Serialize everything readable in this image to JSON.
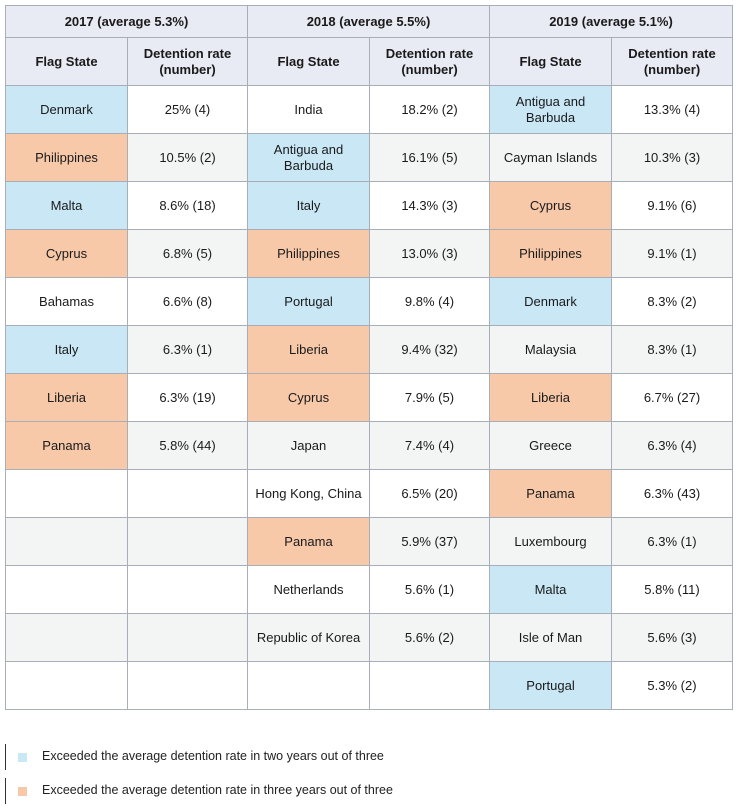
{
  "years": [
    {
      "header": "2017 (average 5.3%)",
      "col_flag": "Flag State",
      "col_rate": "Detention rate (number)",
      "rows": [
        {
          "flag": "Denmark",
          "rate": "25% (4)",
          "status": "two"
        },
        {
          "flag": "Philippines",
          "rate": "10.5% (2)",
          "status": "three"
        },
        {
          "flag": "Malta",
          "rate": "8.6% (18)",
          "status": "two"
        },
        {
          "flag": "Cyprus",
          "rate": "6.8% (5)",
          "status": "three"
        },
        {
          "flag": "Bahamas",
          "rate": "6.6% (8)",
          "status": "none"
        },
        {
          "flag": "Italy",
          "rate": "6.3% (1)",
          "status": "two"
        },
        {
          "flag": "Liberia",
          "rate": "6.3% (19)",
          "status": "three"
        },
        {
          "flag": "Panama",
          "rate": "5.8% (44)",
          "status": "three"
        },
        {
          "flag": "",
          "rate": "",
          "status": "none"
        },
        {
          "flag": "",
          "rate": "",
          "status": "none"
        },
        {
          "flag": "",
          "rate": "",
          "status": "none"
        },
        {
          "flag": "",
          "rate": "",
          "status": "none"
        },
        {
          "flag": "",
          "rate": "",
          "status": "none"
        }
      ]
    },
    {
      "header": "2018 (average 5.5%)",
      "col_flag": "Flag State",
      "col_rate": "Detention rate (number)",
      "rows": [
        {
          "flag": "India",
          "rate": "18.2% (2)",
          "status": "none"
        },
        {
          "flag": "Antigua and Barbuda",
          "rate": "16.1% (5)",
          "status": "two"
        },
        {
          "flag": "Italy",
          "rate": "14.3% (3)",
          "status": "two"
        },
        {
          "flag": "Philippines",
          "rate": "13.0% (3)",
          "status": "three"
        },
        {
          "flag": "Portugal",
          "rate": "9.8% (4)",
          "status": "two"
        },
        {
          "flag": "Liberia",
          "rate": "9.4% (32)",
          "status": "three"
        },
        {
          "flag": "Cyprus",
          "rate": "7.9% (5)",
          "status": "three"
        },
        {
          "flag": "Japan",
          "rate": "7.4% (4)",
          "status": "none"
        },
        {
          "flag": "Hong Kong, China",
          "rate": "6.5% (20)",
          "status": "none"
        },
        {
          "flag": "Panama",
          "rate": "5.9% (37)",
          "status": "three"
        },
        {
          "flag": "Netherlands",
          "rate": "5.6% (1)",
          "status": "none"
        },
        {
          "flag": "Republic of Korea",
          "rate": "5.6% (2)",
          "status": "none"
        },
        {
          "flag": "",
          "rate": "",
          "status": "none"
        }
      ]
    },
    {
      "header": "2019 (average 5.1%)",
      "col_flag": "Flag State",
      "col_rate": "Detention rate (number)",
      "rows": [
        {
          "flag": "Antigua and Barbuda",
          "rate": "13.3% (4)",
          "status": "two"
        },
        {
          "flag": "Cayman Islands",
          "rate": "10.3% (3)",
          "status": "none"
        },
        {
          "flag": "Cyprus",
          "rate": "9.1% (6)",
          "status": "three"
        },
        {
          "flag": "Philippines",
          "rate": "9.1% (1)",
          "status": "three"
        },
        {
          "flag": "Denmark",
          "rate": "8.3% (2)",
          "status": "two"
        },
        {
          "flag": "Malaysia",
          "rate": "8.3% (1)",
          "status": "none"
        },
        {
          "flag": "Liberia",
          "rate": "6.7% (27)",
          "status": "three"
        },
        {
          "flag": "Greece",
          "rate": "6.3% (4)",
          "status": "none"
        },
        {
          "flag": "Panama",
          "rate": "6.3% (43)",
          "status": "three"
        },
        {
          "flag": "Luxembourg",
          "rate": "6.3% (1)",
          "status": "none"
        },
        {
          "flag": "Malta",
          "rate": "5.8% (11)",
          "status": "two"
        },
        {
          "flag": "Isle of Man",
          "rate": "5.6% (3)",
          "status": "none"
        },
        {
          "flag": "Portugal",
          "rate": "5.3% (2)",
          "status": "two"
        }
      ]
    }
  ],
  "legend": [
    {
      "label": "Exceeded the average detention rate in two years out of three",
      "color": "#c9e7f5"
    },
    {
      "label": "Exceeded the average detention rate in three years out of three",
      "color": "#f7c9a9"
    }
  ]
}
